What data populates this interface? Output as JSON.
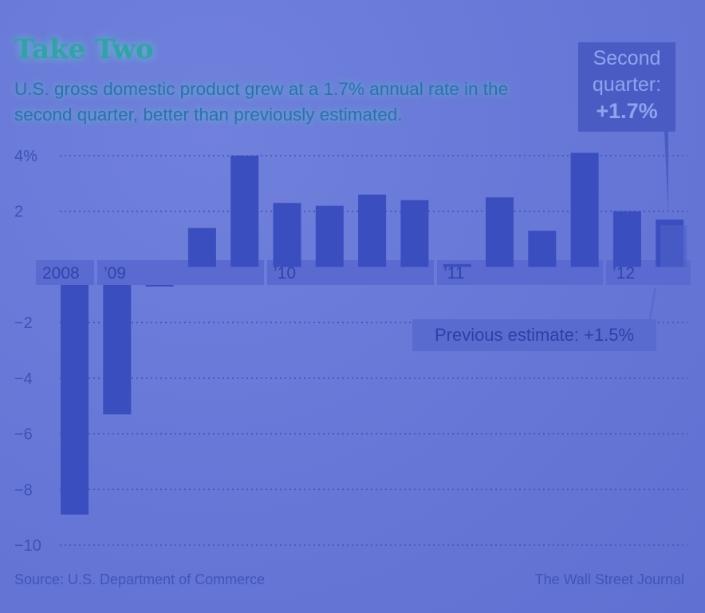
{
  "header": {
    "title": "Take Two",
    "subtitle": "U.S. gross domestic product grew at a 1.7% annual rate in the second quarter, better than previously estimated."
  },
  "callout": {
    "line1": "Second",
    "line2": "quarter:",
    "value": "+1.7%"
  },
  "estimate_label": "Previous estimate: +1.5%",
  "footer": {
    "source": "Source: U.S. Department of Commerce",
    "credit": "The Wall Street Journal"
  },
  "colors": {
    "bar": "#3a4ec0",
    "estimate_bar": "#4e60c8",
    "gridline": "#3e52b6",
    "axis_band": "#5a6ad0",
    "background": "#6a78d8"
  },
  "chart_data": {
    "type": "bar",
    "ylim": [
      -10,
      4
    ],
    "yticks": [
      4,
      2,
      0,
      -2,
      -4,
      -6,
      -8,
      -10
    ],
    "ytick_labels": [
      "4%",
      "2",
      "",
      "−2",
      "−4",
      "−6",
      "−8",
      "−10"
    ],
    "year_labels": [
      "2008",
      "’09",
      "’10",
      "’11",
      "’12"
    ],
    "values": [
      -8.9,
      -5.3,
      -0.3,
      1.4,
      4.0,
      2.3,
      2.2,
      2.6,
      2.4,
      0.1,
      2.5,
      1.3,
      4.1,
      2.0,
      1.7
    ],
    "previous_estimate": 1.5,
    "grid": true
  }
}
